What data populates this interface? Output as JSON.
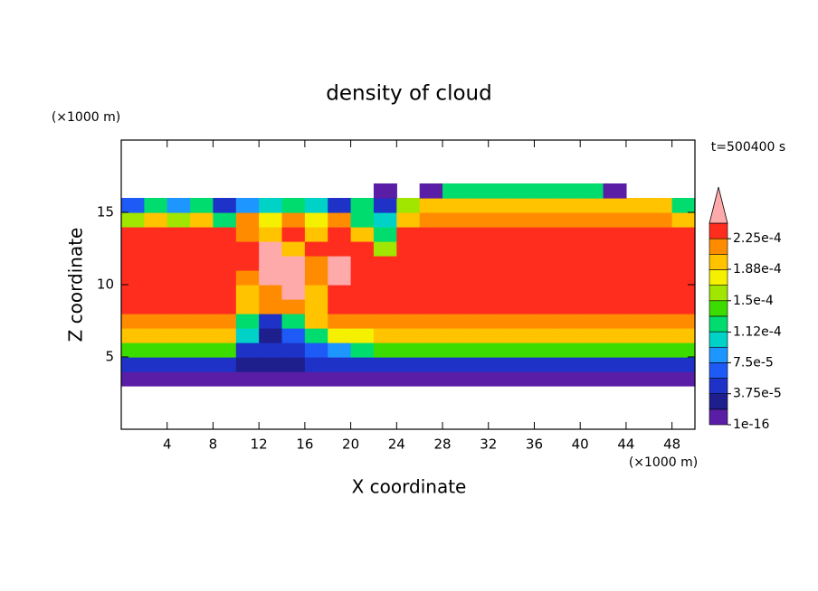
{
  "chart_data": {
    "type": "contourf",
    "title": "density of cloud",
    "xlabel": "X coordinate",
    "ylabel": "Z coordinate",
    "xunit": "(×1000 m)",
    "yunit": "(×1000 m)",
    "annotation": "t=500400 s",
    "xlim": [
      0,
      50
    ],
    "ylim": [
      0,
      20
    ],
    "xticks": [
      4,
      8,
      12,
      16,
      20,
      24,
      28,
      32,
      36,
      40,
      44,
      48
    ],
    "yticks": [
      5,
      10,
      15
    ],
    "x": [
      1,
      3,
      5,
      7,
      9,
      11,
      13,
      15,
      17,
      19,
      21,
      23,
      25,
      27,
      29,
      31,
      33,
      35,
      37,
      39,
      41,
      43,
      45,
      47,
      49
    ],
    "y": [
      3.5,
      4.5,
      5.5,
      6.5,
      7.5,
      8.5,
      9.5,
      10.5,
      11.5,
      12.5,
      13.5,
      14.5,
      15.5,
      16.5
    ],
    "z": [
      [
        1e-05,
        1e-05,
        1e-05,
        1e-05,
        1e-05,
        1e-05,
        1e-05,
        1e-05,
        1e-05,
        1e-05,
        1e-05,
        1e-05,
        1e-05,
        1e-05,
        1e-05,
        1e-05,
        1e-05,
        1e-05,
        1e-05,
        1e-05,
        1e-05,
        1e-05,
        1e-05,
        1e-05,
        1e-05
      ],
      [
        5e-05,
        5e-05,
        5e-05,
        5e-05,
        5e-05,
        3e-05,
        2.5e-05,
        3e-05,
        4e-05,
        4e-05,
        5e-05,
        5e-05,
        5e-05,
        5e-05,
        5e-05,
        5e-05,
        5e-05,
        5e-05,
        5e-05,
        5e-05,
        5e-05,
        5e-05,
        5e-05,
        5e-05,
        5e-05
      ],
      [
        0.00014,
        0.00014,
        0.00014,
        0.00014,
        0.00014,
        5e-05,
        4e-05,
        5e-05,
        6e-05,
        9e-05,
        0.00012,
        0.00014,
        0.00014,
        0.00014,
        0.00014,
        0.00014,
        0.00014,
        0.00014,
        0.00014,
        0.00014,
        0.00014,
        0.00014,
        0.00014,
        0.00014,
        0.00014
      ],
      [
        0.00019,
        0.00019,
        0.00019,
        0.00019,
        0.00019,
        0.0001,
        3e-05,
        6e-05,
        0.00012,
        0.00017,
        0.00018,
        0.00019,
        0.00019,
        0.00019,
        0.00019,
        0.00019,
        0.00019,
        0.00019,
        0.00019,
        0.00019,
        0.00019,
        0.00019,
        0.00019,
        0.00019,
        0.00019
      ],
      [
        0.000215,
        0.000215,
        0.000215,
        0.000215,
        0.000215,
        0.00013,
        4e-05,
        0.00012,
        0.00019,
        0.00021,
        0.00021,
        0.00022,
        0.00022,
        0.00022,
        0.00022,
        0.00022,
        0.00022,
        0.00022,
        0.00022,
        0.00022,
        0.00022,
        0.00022,
        0.00022,
        0.00022,
        0.00022
      ],
      [
        0.00023,
        0.00023,
        0.00023,
        0.00023,
        0.00023,
        0.00019,
        0.00021,
        0.00022,
        0.0002,
        0.00023,
        0.00023,
        0.000235,
        0.000235,
        0.000235,
        0.000235,
        0.000235,
        0.000235,
        0.000235,
        0.000235,
        0.000235,
        0.000235,
        0.000235,
        0.000235,
        0.000235,
        0.000235
      ],
      [
        0.00024,
        0.00024,
        0.00024,
        0.00024,
        0.00024,
        0.0002,
        0.00022,
        0.00025,
        0.0002,
        0.00024,
        0.000235,
        0.00024,
        0.00024,
        0.00024,
        0.00024,
        0.00024,
        0.00024,
        0.00024,
        0.00024,
        0.00024,
        0.00024,
        0.00024,
        0.00024,
        0.00024,
        0.00024
      ],
      [
        0.00024,
        0.00024,
        0.00024,
        0.00024,
        0.00024,
        0.00022,
        0.00025,
        0.00025,
        0.00021,
        0.000245,
        0.00024,
        0.00024,
        0.00024,
        0.00024,
        0.00024,
        0.00024,
        0.00024,
        0.00024,
        0.00024,
        0.00024,
        0.00024,
        0.00024,
        0.00024,
        0.00024,
        0.00024
      ],
      [
        0.00024,
        0.00024,
        0.00024,
        0.00024,
        0.00024,
        0.00023,
        0.00025,
        0.00025,
        0.00022,
        0.000245,
        0.00023,
        0.00023,
        0.00024,
        0.00024,
        0.00024,
        0.00024,
        0.00024,
        0.00024,
        0.00024,
        0.00024,
        0.00024,
        0.00024,
        0.00024,
        0.00024,
        0.00024
      ],
      [
        0.000235,
        0.000235,
        0.000235,
        0.000235,
        0.000235,
        0.000235,
        0.00025,
        0.00019,
        0.00023,
        0.00024,
        0.00023,
        0.00016,
        0.000235,
        0.000235,
        0.000235,
        0.000235,
        0.000235,
        0.000235,
        0.000235,
        0.000235,
        0.000235,
        0.000235,
        0.000235,
        0.000235,
        0.000235
      ],
      [
        0.00023,
        0.00023,
        0.00023,
        0.00023,
        0.00023,
        0.00022,
        0.0002,
        0.00023,
        0.00019,
        0.00023,
        0.0002,
        0.00012,
        0.000225,
        0.00023,
        0.00023,
        0.00023,
        0.00023,
        0.00023,
        0.00023,
        0.00023,
        0.00023,
        0.00023,
        0.00023,
        0.00023,
        0.00023
      ],
      [
        0.00016,
        0.00019,
        0.00015,
        0.0002,
        0.00013,
        0.00021,
        0.00017,
        0.00022,
        0.00018,
        0.00022,
        0.00012,
        0.0001,
        0.0002,
        0.00021,
        0.00021,
        0.00021,
        0.00021,
        0.00021,
        0.00021,
        0.00021,
        0.00021,
        0.00021,
        0.00021,
        0.00021,
        0.0002
      ],
      [
        6e-05,
        0.00012,
        9e-05,
        0.00012,
        5e-05,
        8e-05,
        0.00011,
        0.00013,
        0.00011,
        5e-05,
        0.00012,
        4e-05,
        0.00015,
        0.00019,
        0.00019,
        0.00019,
        0.00019,
        0.00019,
        0.00019,
        0.00019,
        0.00019,
        0.00019,
        0.00019,
        0.00019,
        0.00013
      ],
      [
        null,
        null,
        null,
        null,
        null,
        null,
        null,
        null,
        null,
        null,
        null,
        1e-05,
        null,
        1e-05,
        0.00012,
        0.00012,
        0.00012,
        0.00012,
        0.00012,
        0.00012,
        0.00012,
        1e-05,
        null,
        null,
        null
      ]
    ],
    "levels": [
      1e-16,
      1.875e-05,
      3.75e-05,
      5.625e-05,
      7.5e-05,
      9.375e-05,
      0.0001125,
      0.00013125,
      0.00015,
      0.00016875,
      0.0001875,
      0.00020625,
      0.000225,
      0.00024375
    ],
    "colors": [
      "#5a1ea6",
      "#1e1e8c",
      "#1e32c8",
      "#1e5af5",
      "#1e96ff",
      "#00d2c8",
      "#00dc6e",
      "#3cdc00",
      "#a0e600",
      "#f5f000",
      "#ffc300",
      "#ff8c00",
      "#ff2d1e"
    ],
    "over_color": "#ffaaaa",
    "colorbar_ticks": [
      1e-16,
      {
        "value": 3.75e-05,
        "label": "3.75e-5"
      },
      {
        "value": 7.5e-05,
        "label": "7.5e-5"
      },
      {
        "value": 0.000112,
        "label": "1.12e-4"
      },
      {
        "value": 0.00015,
        "label": "1.5e-4"
      },
      {
        "value": 0.000188,
        "label": "1.88e-4"
      },
      {
        "value": 0.000225,
        "label": "2.25e-4"
      }
    ]
  }
}
